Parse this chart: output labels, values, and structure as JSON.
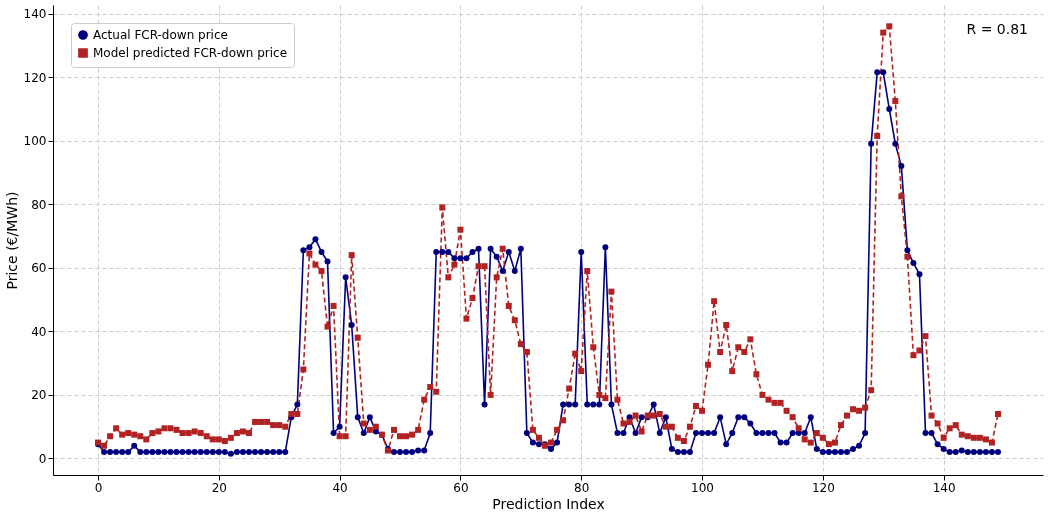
{
  "chart_data": {
    "type": "line",
    "xlabel": "Prediction Index",
    "ylabel": "Price (€/MWh)",
    "xlim": [
      -7.45,
      156.45
    ],
    "ylim": [
      -5.2,
      142.7
    ],
    "xticks": [
      0,
      20,
      40,
      60,
      80,
      100,
      120,
      140
    ],
    "yticks": [
      0,
      20,
      40,
      60,
      80,
      100,
      120,
      140
    ],
    "grid": true,
    "legend": "top left",
    "annotations": [
      "R = 0.81"
    ],
    "x": [
      0,
      1,
      2,
      3,
      4,
      5,
      6,
      7,
      8,
      9,
      10,
      11,
      12,
      13,
      14,
      15,
      16,
      17,
      18,
      19,
      20,
      21,
      22,
      23,
      24,
      25,
      26,
      27,
      28,
      29,
      30,
      31,
      32,
      33,
      34,
      35,
      36,
      37,
      38,
      39,
      40,
      41,
      42,
      43,
      44,
      45,
      46,
      47,
      48,
      49,
      50,
      51,
      52,
      53,
      54,
      55,
      56,
      57,
      58,
      59,
      60,
      61,
      62,
      63,
      64,
      65,
      66,
      67,
      68,
      69,
      70,
      71,
      72,
      73,
      74,
      75,
      76,
      77,
      78,
      79,
      80,
      81,
      82,
      83,
      84,
      85,
      86,
      87,
      88,
      89,
      90,
      91,
      92,
      93,
      94,
      95,
      96,
      97,
      98,
      99,
      100,
      101,
      102,
      103,
      104,
      105,
      106,
      107,
      108,
      109,
      110,
      111,
      112,
      113,
      114,
      115,
      116,
      117,
      118,
      119,
      120,
      121,
      122,
      123,
      124,
      125,
      126,
      127,
      128,
      129,
      130,
      131,
      132,
      133,
      134,
      135,
      136,
      137,
      138,
      139,
      140,
      141,
      142,
      143,
      144,
      145,
      146,
      147,
      148,
      149
    ],
    "series": [
      {
        "name": "Actual FCR-down price",
        "color": "#00007f",
        "marker": "circle",
        "line_style": "solid",
        "values": [
          4.5,
          2,
          2,
          2,
          2,
          2,
          4,
          2,
          2,
          2,
          2,
          2,
          2,
          2,
          2,
          2,
          2,
          2,
          2,
          2,
          2,
          2,
          1.5,
          2,
          2,
          2,
          2,
          2,
          2,
          2,
          2,
          2,
          13,
          17,
          65.5,
          66.5,
          69,
          65,
          62,
          8,
          10,
          57,
          42,
          13,
          8,
          13,
          8.5,
          7.5,
          3,
          2,
          2,
          2,
          2,
          2.5,
          2.5,
          8,
          65,
          65,
          65,
          63,
          63,
          63,
          65,
          66,
          17,
          66,
          63.5,
          59,
          65,
          59,
          66,
          8,
          5,
          4.5,
          4.5,
          3,
          5,
          17,
          17,
          17,
          65,
          17,
          17,
          17,
          66.5,
          17,
          8,
          8,
          13,
          8,
          13,
          13,
          17,
          8,
          13,
          3,
          2,
          2,
          2,
          8,
          8,
          8,
          8,
          13,
          4.5,
          8,
          13,
          13,
          11,
          8,
          8,
          8,
          8,
          5,
          5,
          8,
          8,
          8,
          13,
          3,
          2,
          2,
          2,
          2,
          2,
          3,
          4,
          8,
          99,
          121.5,
          121.5,
          110,
          99,
          92,
          65.5,
          61.5,
          58,
          8,
          8,
          4.5,
          3,
          2,
          2,
          2.5,
          2,
          2,
          2,
          2,
          2,
          2
        ]
      },
      {
        "name": "Model predicted FCR-down price",
        "color": "#b22222",
        "marker": "square",
        "line_style": "dashed",
        "values": [
          5,
          4,
          7,
          9.5,
          7.5,
          8,
          7.5,
          7,
          6,
          8,
          8.5,
          9.5,
          9.5,
          9,
          8,
          8,
          8.5,
          8,
          7,
          6,
          6,
          5.5,
          6.5,
          8,
          8.5,
          8,
          11.5,
          11.5,
          11.5,
          10.5,
          10.5,
          10,
          14,
          14,
          28,
          64.5,
          61,
          59,
          41.5,
          48,
          7,
          7,
          64,
          38,
          11,
          9,
          10,
          7.5,
          2.5,
          9,
          7,
          7,
          7.5,
          9,
          18.5,
          22.5,
          21,
          79,
          57,
          61,
          72,
          44,
          50.5,
          60.5,
          60.5,
          20,
          57,
          66,
          48,
          43.5,
          36,
          33.5,
          9,
          6.5,
          4,
          5,
          9,
          12,
          22,
          33,
          27.5,
          59,
          35,
          20,
          19,
          52.5,
          18.5,
          11,
          11.5,
          13.5,
          8.5,
          13.5,
          13.5,
          14,
          10,
          10,
          6.5,
          5.5,
          10,
          16.5,
          15,
          29.5,
          49.5,
          33.5,
          42,
          27.5,
          35,
          33.5,
          37.5,
          26.5,
          20,
          18.5,
          17.5,
          17.5,
          15,
          13,
          9.5,
          6,
          5,
          8,
          6.5,
          4.5,
          5,
          10.5,
          13.5,
          15.5,
          15,
          16,
          21.5,
          101.5,
          134,
          136,
          112.5,
          82.5,
          63.5,
          32.5,
          34,
          38.5,
          13.5,
          11,
          6.5,
          9.5,
          10.5,
          7.5,
          7,
          6.5,
          6.5,
          6,
          5,
          14
        ]
      }
    ]
  }
}
